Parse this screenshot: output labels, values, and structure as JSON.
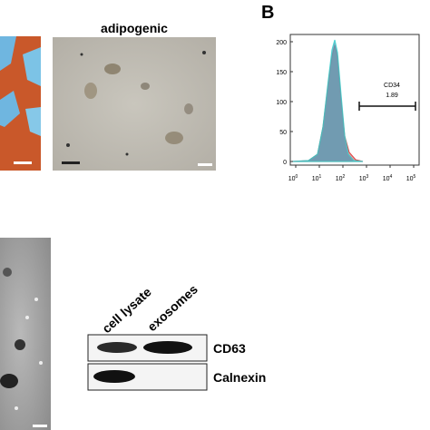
{
  "panel_a": {
    "title": "adipogenic"
  },
  "panel_b": {
    "label": "B",
    "gate": {
      "name": "CD34",
      "value": 1.89
    },
    "yticks": [
      0,
      50,
      100,
      150,
      200
    ],
    "xticks": [
      {
        "base": "10",
        "exp": "0"
      },
      {
        "base": "10",
        "exp": "1"
      },
      {
        "base": "10",
        "exp": "2"
      },
      {
        "base": "10",
        "exp": "3"
      },
      {
        "base": "10",
        "exp": "4"
      },
      {
        "base": "10",
        "exp": "5"
      }
    ]
  },
  "panel_d": {
    "lanes": [
      "cell lysate",
      "exosomes"
    ],
    "bands": [
      "CD63",
      "Calnexin"
    ]
  }
}
